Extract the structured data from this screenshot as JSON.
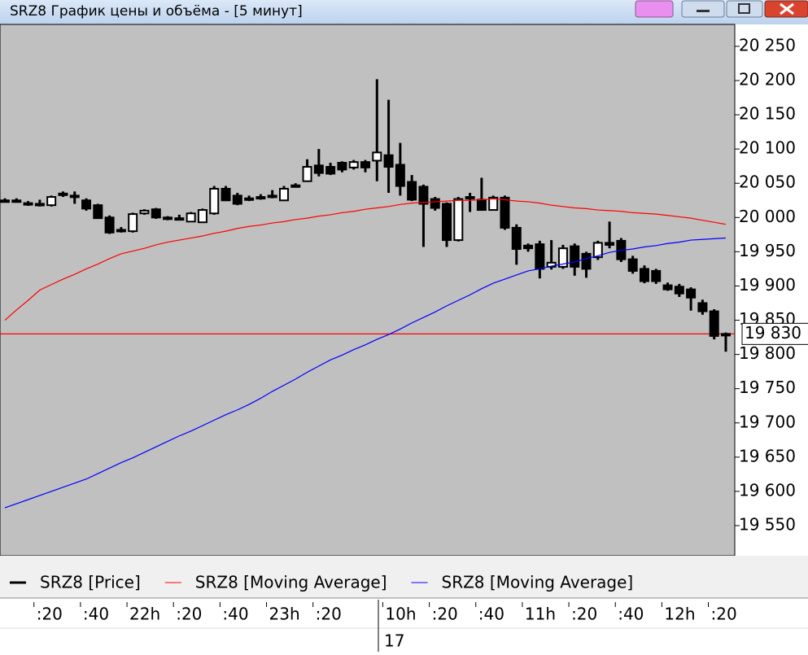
{
  "window": {
    "title": "SRZ8 График цены и объёма - [5 минут]"
  },
  "chart_data": {
    "type": "candlestick",
    "categories": [
      null,
      null,
      null,
      ":20",
      null,
      null,
      null,
      ":40",
      null,
      null,
      null,
      "22h",
      null,
      null,
      null,
      ":20",
      null,
      null,
      null,
      ":40",
      null,
      null,
      null,
      "23h",
      null,
      null,
      null,
      ":20",
      null,
      null,
      null,
      null,
      null,
      "10h",
      null,
      null,
      null,
      ":20",
      null,
      null,
      null,
      ":40",
      null,
      null,
      null,
      "11h",
      null,
      null,
      null,
      ":20",
      null,
      null,
      null,
      ":40",
      null,
      null,
      null,
      "12h",
      null,
      null,
      null,
      ":20",
      null
    ],
    "date_label": "17",
    "series": [
      {
        "name": "SRZ8 [Price]",
        "color": "#000000",
        "open": [
          20025,
          20025,
          20021,
          20020,
          20018,
          20034,
          20032,
          20025,
          20018,
          20000,
          19982,
          19980,
          20006,
          20012,
          20000,
          19999,
          19994,
          19993,
          20006,
          20042,
          20032,
          20028,
          20029,
          20032,
          20025,
          20047,
          20053,
          20076,
          20074,
          20080,
          20073,
          20081,
          20083,
          20091,
          20077,
          20052,
          20045,
          20027,
          20020,
          19967,
          20028,
          20026,
          20011,
          20029,
          19985,
          19959,
          19961,
          19928,
          19928,
          19958,
          19947,
          19942,
          19963,
          19966,
          19939,
          19925,
          19922,
          19901,
          19899,
          19895,
          19875,
          19863,
          19830
        ],
        "high": [
          20028,
          20028,
          20024,
          20026,
          20032,
          20038,
          20038,
          20028,
          20020,
          20003,
          19986,
          20007,
          20012,
          20014,
          20002,
          20004,
          20008,
          20013,
          20046,
          20046,
          20036,
          20032,
          20034,
          20040,
          20046,
          20050,
          20085,
          20100,
          20080,
          20082,
          20084,
          20084,
          20202,
          20172,
          20109,
          20062,
          20048,
          20030,
          20022,
          20030,
          20036,
          20058,
          20032,
          20032,
          19990,
          19962,
          19966,
          19967,
          19960,
          19962,
          19950,
          19966,
          19994,
          19970,
          19944,
          19930,
          19925,
          19905,
          19903,
          19898,
          19880,
          19866,
          19832
        ],
        "low": [
          20022,
          20022,
          20017,
          20016,
          20016,
          20030,
          20020,
          20010,
          19998,
          19976,
          19978,
          19978,
          20004,
          19998,
          19996,
          19996,
          19994,
          19992,
          20004,
          20024,
          20018,
          20024,
          20026,
          20028,
          20024,
          20044,
          20052,
          20060,
          20062,
          20066,
          20070,
          20066,
          20053,
          20036,
          20032,
          20024,
          19957,
          20010,
          19957,
          19965,
          20008,
          20010,
          20010,
          19982,
          19931,
          19950,
          19911,
          19924,
          19925,
          19915,
          19912,
          19938,
          19955,
          19935,
          19918,
          19904,
          19903,
          19893,
          19884,
          19864,
          19858,
          19822,
          19804
        ],
        "close": [
          20024,
          20025,
          20020,
          20019,
          20030,
          20035,
          20030,
          20013,
          19999,
          19978,
          19982,
          20005,
          20010,
          20000,
          19999,
          19998,
          20006,
          20011,
          20042,
          20025,
          20020,
          20027,
          20030,
          20031,
          20042,
          20046,
          20074,
          20065,
          20064,
          20070,
          20081,
          20073,
          20095,
          20074,
          20046,
          20026,
          20020,
          20014,
          19967,
          20027,
          20030,
          20011,
          20029,
          19985,
          19954,
          19955,
          19925,
          19934,
          19955,
          19928,
          19925,
          19963,
          19960,
          19939,
          19922,
          19907,
          19907,
          19895,
          19889,
          19883,
          19863,
          19827,
          19830
        ]
      },
      {
        "name": "SRZ8 [Moving Average]",
        "color": "#ff0000",
        "values": [
          19850,
          19865,
          19879,
          19894,
          19902,
          19910,
          19917,
          19925,
          19932,
          19940,
          19947,
          19951,
          19955,
          19960,
          19964,
          19967,
          19970,
          19973,
          19977,
          19980,
          19984,
          19987,
          19989,
          19992,
          19994,
          19997,
          19999,
          20002,
          20004,
          20007,
          20009,
          20012,
          20014,
          20016,
          20019,
          20021,
          20022,
          20023,
          20024,
          20025,
          20025,
          20026,
          20027,
          20026,
          20024,
          20023,
          20021,
          20018,
          20016,
          20014,
          20013,
          20011,
          20010,
          20009,
          20007,
          20006,
          20005,
          20003,
          20001,
          19999,
          19996,
          19993,
          19990
        ]
      },
      {
        "name": "SRZ8 [Moving Average]",
        "color": "#0000ff",
        "values": [
          19576,
          19582,
          19588,
          19594,
          19600,
          19606,
          19612,
          19618,
          19626,
          19634,
          19642,
          19649,
          19657,
          19665,
          19673,
          19681,
          19688,
          19696,
          19704,
          19712,
          19719,
          19727,
          19736,
          19746,
          19755,
          19764,
          19774,
          19783,
          19792,
          19799,
          19807,
          19814,
          19822,
          19829,
          19837,
          19846,
          19854,
          19862,
          19871,
          19879,
          19887,
          19896,
          19904,
          19910,
          19916,
          19922,
          19925,
          19929,
          19932,
          19935,
          19940,
          19944,
          19949,
          19952,
          19954,
          19957,
          19959,
          19962,
          19964,
          19967,
          19968,
          19969,
          19970
        ]
      }
    ],
    "last_price": {
      "value": 19830,
      "label": "19 830",
      "color": "#ff0000"
    },
    "ylim": [
      19506,
      20282
    ],
    "yticks": [
      {
        "value": 19550,
        "label": "19 550"
      },
      {
        "value": 19600,
        "label": "19 600"
      },
      {
        "value": 19650,
        "label": "19 650"
      },
      {
        "value": 19700,
        "label": "19 700"
      },
      {
        "value": 19750,
        "label": "19 750"
      },
      {
        "value": 19800,
        "label": "19 800"
      },
      {
        "value": 19850,
        "label": "19 850"
      },
      {
        "value": 19900,
        "label": "19 900"
      },
      {
        "value": 19950,
        "label": "19 950"
      },
      {
        "value": 20000,
        "label": "20 000"
      },
      {
        "value": 20050,
        "label": "20 050"
      },
      {
        "value": 20100,
        "label": "20 100"
      },
      {
        "value": 20150,
        "label": "20 150"
      },
      {
        "value": 20200,
        "label": "20 200"
      },
      {
        "value": 20250,
        "label": "20 250"
      }
    ],
    "grid": false
  }
}
